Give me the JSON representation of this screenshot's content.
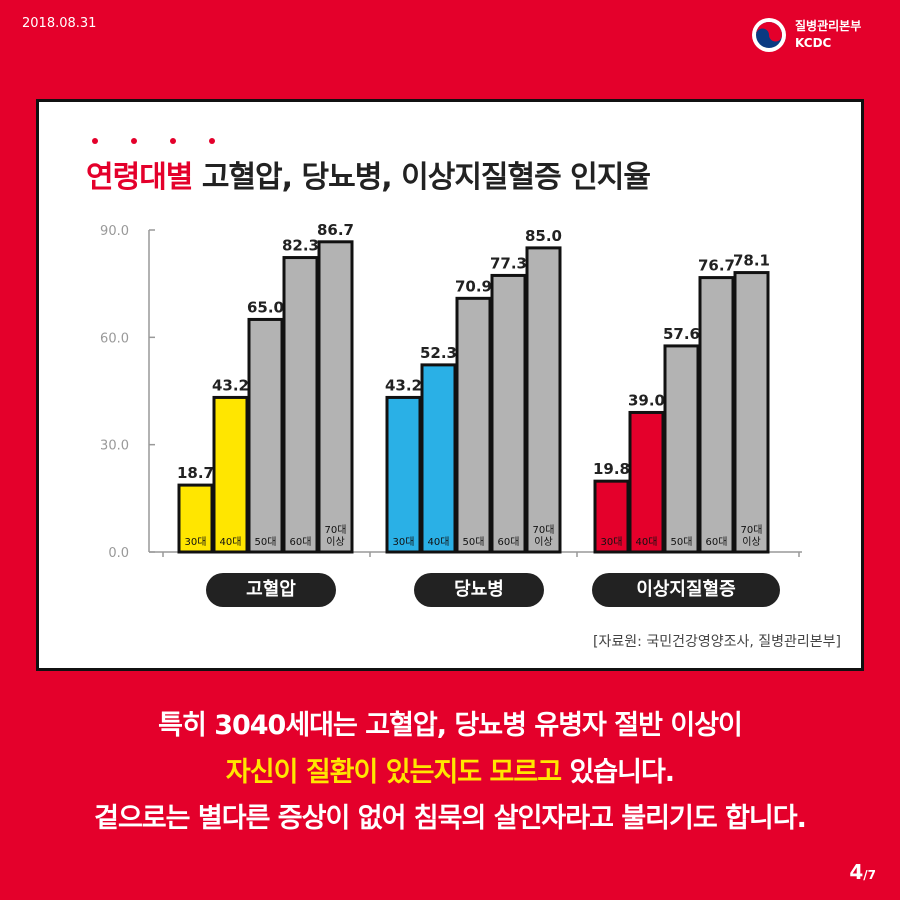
{
  "header": {
    "date": "2018.08.31",
    "org_kr": "질병관리본부",
    "org_en": "KCDC"
  },
  "title": {
    "highlight": "연령대별",
    "rest": " 고혈압, 당뇨병, 이상지질혈증 인지율"
  },
  "source": "[자료원: 국민건강영양조사, 질병관리본부]",
  "caption": {
    "line1": "특히 3040세대는 고혈압, 당뇨병 유병자 절반 이상이",
    "line2_highlight": "자신이 질환이 있는지도 모르고",
    "line2_rest": " 있습니다.",
    "line3": "겉으로는 별다른 증상이 없어 침묵의 살인자라고 불리기도 합니다."
  },
  "page": {
    "current": "4",
    "total": "/7"
  },
  "colors": {
    "background": "#e4002b",
    "highlight_text": "#ffe600",
    "hypertension_young": "#ffe600",
    "diabetes_young": "#2ab0e6",
    "dyslipidemia_young": "#e4002b",
    "older": "#b3b3b3"
  },
  "chart_data": {
    "type": "bar",
    "title": "연령대별 고혈압, 당뇨병, 이상지질혈증 인지율",
    "ylim": [
      0,
      90
    ],
    "yticks": [
      "0.0",
      "30.0",
      "60.0",
      "90.0"
    ],
    "grid": false,
    "age_labels": [
      "30대",
      "40대",
      "50대",
      "60대",
      "70대 이상"
    ],
    "groups": [
      {
        "name": "고혈압",
        "values": [
          18.7,
          43.2,
          65.0,
          82.3,
          86.7
        ],
        "labels": [
          "18.7",
          "43.2",
          "65.0",
          "82.3",
          "86.7"
        ]
      },
      {
        "name": "당뇨병",
        "values": [
          43.2,
          52.3,
          70.9,
          77.3,
          85.0
        ],
        "labels": [
          "43.2",
          "52.3",
          "70.9",
          "77.3",
          "85.0"
        ]
      },
      {
        "name": "이상지질혈증",
        "values": [
          19.8,
          39.0,
          57.6,
          76.7,
          78.1
        ],
        "labels": [
          "19.8",
          "39.0",
          "57.6",
          "76.7",
          "78.1"
        ]
      }
    ]
  }
}
